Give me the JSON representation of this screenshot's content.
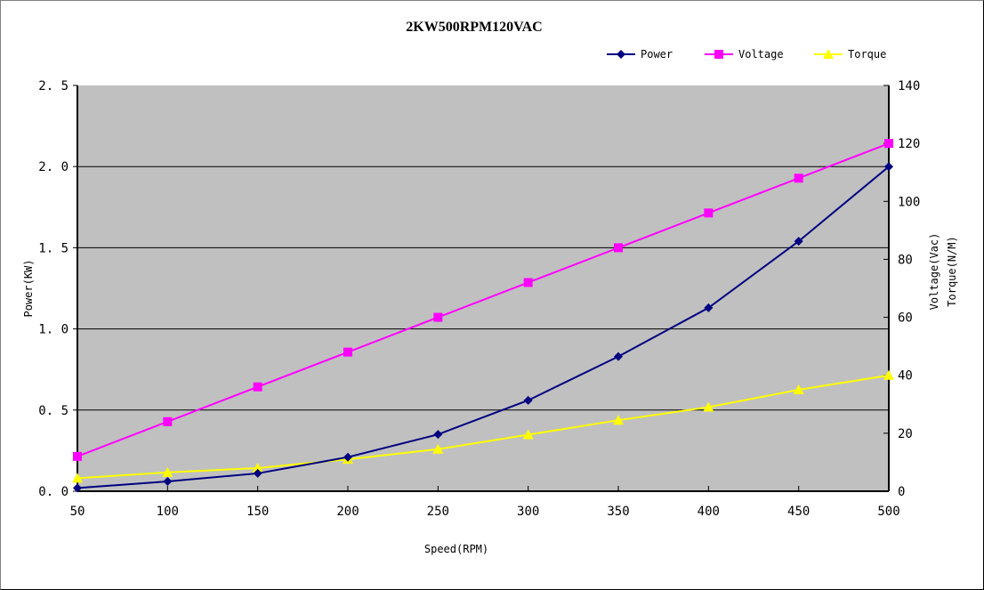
{
  "chart": {
    "title": "2KW500RPM120VAC",
    "xlabel": "Speed(RPM)",
    "ylabel_left": "Power(KW)",
    "ylabel_right_line1": "Voltage(Vac)",
    "ylabel_right_line2": "Torque(N/M)",
    "legend": [
      {
        "name": "Power",
        "color": "#000080",
        "marker": "diamond"
      },
      {
        "name": "Voltage",
        "color": "#FF00FF",
        "marker": "square"
      },
      {
        "name": "Torque",
        "color": "#FFFF00",
        "marker": "triangle"
      }
    ],
    "x_ticks": [
      "50",
      "100",
      "150",
      "200",
      "250",
      "300",
      "350",
      "400",
      "450",
      "500"
    ],
    "y_left_ticks": [
      "0.0",
      "0.5",
      "1.0",
      "1.5",
      "2.0",
      "2.5"
    ],
    "y_right_ticks": [
      "0",
      "20",
      "40",
      "60",
      "80",
      "100",
      "120",
      "140"
    ],
    "plot_bg": "#C0C0C0"
  },
  "chart_data": {
    "type": "line",
    "title": "2KW500RPM120VAC",
    "xlabel": "Speed(RPM)",
    "ylabel": "Power(KW)",
    "y2label": "Voltage(Vac) / Torque(N/M)",
    "x": [
      50,
      100,
      150,
      200,
      250,
      300,
      350,
      400,
      450,
      500
    ],
    "series": [
      {
        "name": "Power",
        "axis": "left",
        "color": "#000080",
        "values": [
          0.02,
          0.06,
          0.11,
          0.21,
          0.35,
          0.56,
          0.83,
          1.13,
          1.54,
          2.0
        ]
      },
      {
        "name": "Voltage",
        "axis": "right",
        "color": "#FF00FF",
        "values": [
          12,
          24,
          36,
          48,
          60,
          72,
          84,
          96,
          108,
          120
        ]
      },
      {
        "name": "Torque",
        "axis": "right",
        "color": "#FFFF00",
        "values": [
          4.5,
          6.5,
          8,
          11,
          14.5,
          19.5,
          24.5,
          29,
          35,
          40
        ]
      }
    ],
    "xlim": [
      50,
      500
    ],
    "ylim": [
      0,
      2.5
    ],
    "y2lim": [
      0,
      140
    ],
    "grid": "horizontal major on left axis",
    "legend_position": "top-right"
  }
}
